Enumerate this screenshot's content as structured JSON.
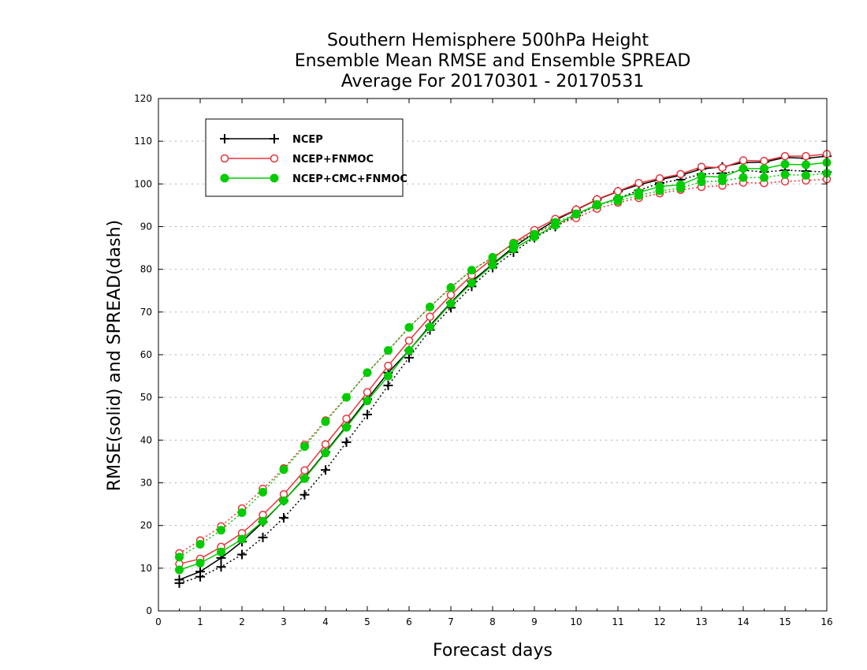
{
  "colors": {
    "ncep": "#000000",
    "fnmoc": "#e8343a",
    "cmc": "#00cc00",
    "grid": "#b0b0b0"
  },
  "chart_data": {
    "type": "line",
    "title_lines": [
      "Southern Hemisphere 500hPa Height",
      "Ensemble Mean RMSE and Ensemble SPREAD",
      "Average For 20170301 - 20170531"
    ],
    "xlabel": "Forecast days",
    "ylabel": "RMSE(solid) and SPREAD(dash)",
    "xlim": [
      0,
      16
    ],
    "ylim": [
      0,
      120
    ],
    "x_ticks": [
      "0",
      "1",
      "2",
      "3",
      "4",
      "5",
      "6",
      "7",
      "8",
      "9",
      "10",
      "11",
      "12",
      "13",
      "14",
      "15",
      "16"
    ],
    "y_ticks": [
      "0",
      "10",
      "20",
      "30",
      "40",
      "50",
      "60",
      "70",
      "80",
      "90",
      "100",
      "110",
      "120"
    ],
    "grid": "horizontal dotted",
    "legend_position": "top-left",
    "x": [
      0.5,
      1.0,
      1.5,
      2.0,
      2.5,
      3.0,
      3.5,
      4.0,
      4.5,
      5.0,
      5.5,
      6.0,
      6.5,
      7.0,
      7.5,
      8.0,
      8.5,
      9.0,
      9.5,
      10.0,
      10.5,
      11.0,
      11.5,
      12.0,
      12.5,
      13.0,
      13.5,
      14.0,
      14.5,
      15.0,
      15.5,
      16.0
    ],
    "series": [
      {
        "name": "NCEP",
        "marker": "plus",
        "color_key": "ncep",
        "rmse": [
          7.3,
          9.2,
          12.4,
          16.2,
          20.8,
          25.8,
          31.2,
          37.2,
          43.3,
          49.6,
          55.8,
          61.0,
          66.8,
          72.2,
          77.2,
          81.2,
          85.2,
          88.5,
          91.5,
          93.9,
          96.3,
          98.2,
          99.8,
          101.0,
          102.0,
          103.5,
          104.0,
          105.0,
          105.1,
          106.2,
          106.0,
          106.5
        ],
        "spread": [
          6.5,
          8.0,
          10.3,
          13.2,
          17.2,
          21.8,
          27.2,
          33.0,
          39.5,
          46.0,
          52.8,
          59.3,
          65.8,
          71.0,
          76.0,
          80.4,
          84.0,
          87.4,
          90.0,
          92.6,
          95.0,
          96.6,
          98.5,
          100.2,
          101.0,
          102.3,
          102.5,
          103.2,
          102.8,
          103.2,
          103.0,
          102.8
        ]
      },
      {
        "name": "NCEP+FNMOC",
        "marker": "open-circle",
        "color_key": "fnmoc",
        "rmse": [
          11.0,
          12.2,
          15.0,
          18.2,
          22.5,
          27.3,
          32.9,
          39.0,
          45.0,
          51.2,
          57.4,
          63.3,
          68.9,
          74.0,
          78.6,
          82.5,
          86.2,
          89.2,
          91.8,
          94.0,
          96.4,
          98.3,
          100.2,
          101.3,
          102.3,
          104.0,
          103.8,
          105.5,
          105.4,
          106.5,
          106.5,
          107.0
        ],
        "spread": [
          13.5,
          16.5,
          19.8,
          24.0,
          28.6,
          33.4,
          38.9,
          44.6,
          50.0,
          55.8,
          61.0,
          66.4,
          71.2,
          75.8,
          79.8,
          82.8,
          86.0,
          88.6,
          90.4,
          92.0,
          94.2,
          95.6,
          96.7,
          97.8,
          98.6,
          99.3,
          99.6,
          100.3,
          100.2,
          100.6,
          100.8,
          101.1
        ]
      },
      {
        "name": "NCEP+CMC+FNMOC",
        "marker": "filled-circle",
        "color_key": "cmc",
        "rmse": [
          9.6,
          11.2,
          13.8,
          16.8,
          21.0,
          25.8,
          31.0,
          37.0,
          43.0,
          49.2,
          55.0,
          61.0,
          66.5,
          72.0,
          76.8,
          81.0,
          84.8,
          87.6,
          90.3,
          93.0,
          95.0,
          96.6,
          98.0,
          99.4,
          99.8,
          101.8,
          101.6,
          103.6,
          103.6,
          104.6,
          104.5,
          105.0
        ],
        "spread": [
          12.6,
          15.6,
          18.9,
          23.0,
          27.8,
          33.1,
          38.5,
          44.3,
          50.0,
          55.8,
          61.0,
          66.4,
          71.2,
          75.7,
          79.8,
          82.8,
          86.0,
          88.2,
          91.0,
          92.9,
          95.2,
          96.0,
          97.3,
          98.4,
          99.0,
          100.5,
          100.7,
          101.5,
          101.5,
          102.2,
          102.0,
          102.5
        ]
      }
    ]
  }
}
